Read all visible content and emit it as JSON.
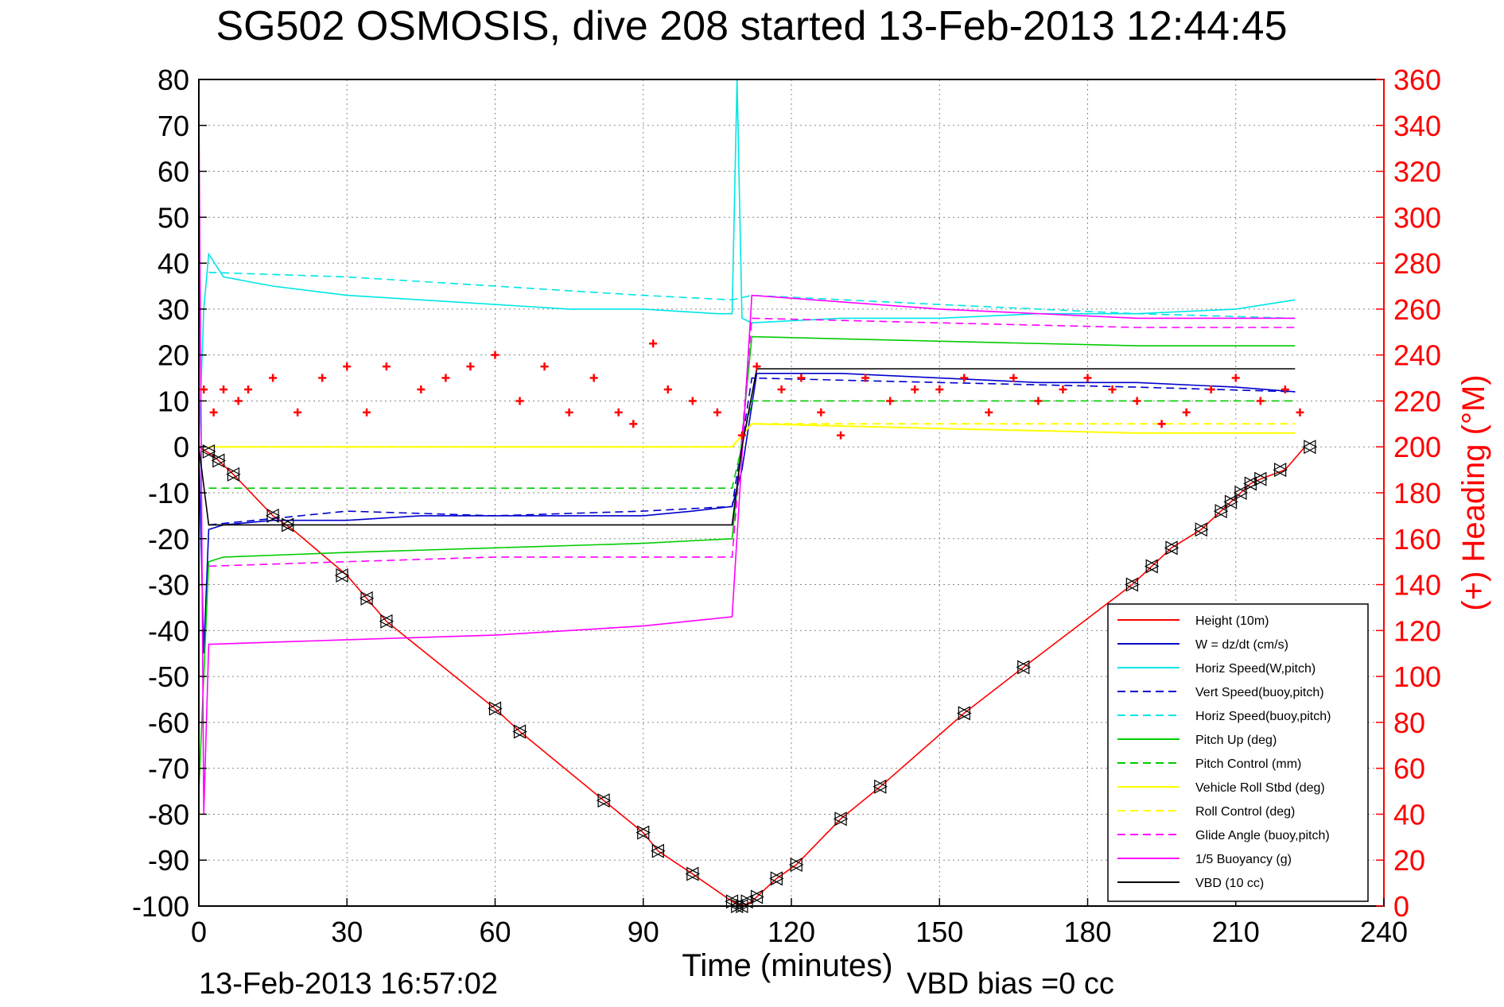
{
  "chart_data": {
    "type": "line",
    "title": "SG502 OSMOSIS, dive 208 started 13-Feb-2013 12:44:45",
    "xlabel": "Time (minutes)",
    "ylabel": "",
    "y2label": "(+) Heading (°M)",
    "footer_left": "13-Feb-2013 16:57:02",
    "footer_right": "VBD bias =0 cc",
    "xlim": [
      0,
      240
    ],
    "ylim": [
      -100,
      80
    ],
    "y2lim": [
      0,
      360
    ],
    "xticks": [
      "0",
      "30",
      "60",
      "90",
      "120",
      "150",
      "180",
      "210",
      "240"
    ],
    "yticks": [
      "80",
      "70",
      "60",
      "50",
      "40",
      "30",
      "20",
      "10",
      "0",
      "-10",
      "-20",
      "-30",
      "-40",
      "-50",
      "-60",
      "-70",
      "-80",
      "-90",
      "-100"
    ],
    "y2ticks": [
      "360",
      "340",
      "320",
      "300",
      "280",
      "260",
      "240",
      "220",
      "200",
      "180",
      "160",
      "140",
      "120",
      "100",
      "80",
      "60",
      "40",
      "20",
      "0"
    ],
    "grid": true,
    "legend_position": "bottom-right",
    "colors": {
      "height": "#ff0000",
      "w": "#0000cc",
      "horiz": "#00e5e5",
      "pitch": "#00cc00",
      "roll": "#ffff00",
      "glide": "#ff00ff",
      "vbd": "#000000",
      "heading": "#ff0000",
      "markers": "#000000"
    },
    "series": [
      {
        "name": "Height (10m)",
        "style": "solid",
        "color": "#ff0000",
        "x": [
          0,
          3,
          7,
          15,
          19,
          30,
          34,
          38,
          60,
          65,
          82,
          90,
          93,
          100,
          108,
          110,
          112,
          117,
          121,
          130,
          138,
          155,
          167,
          189,
          193,
          197,
          203,
          207,
          210,
          213,
          215,
          220,
          224
        ],
        "y": [
          0,
          -2,
          -6,
          -15,
          -18,
          -28,
          -33,
          -38,
          -57,
          -62,
          -77,
          -84,
          -88,
          -93,
          -99,
          -100,
          -99,
          -94,
          -91,
          -81,
          -74,
          -58,
          -48,
          -30,
          -26,
          -22,
          -18,
          -14,
          -11,
          -8,
          -7,
          -5,
          0
        ]
      },
      {
        "name": "W = dz/dt (cm/s)",
        "style": "solid",
        "color": "#0000cc",
        "x": [
          0,
          1,
          2,
          5,
          15,
          30,
          45,
          60,
          75,
          90,
          100,
          108,
          110,
          113,
          130,
          150,
          170,
          190,
          210,
          222
        ],
        "y": [
          0,
          -45,
          -18,
          -17,
          -16,
          -16,
          -15,
          -15,
          -15,
          -15,
          -14,
          -13,
          -5,
          16,
          16,
          15,
          14,
          14,
          13,
          12
        ]
      },
      {
        "name": "Horiz Speed(W,pitch)",
        "style": "solid",
        "color": "#00e5e5",
        "x": [
          0,
          1,
          2,
          5,
          15,
          30,
          45,
          60,
          75,
          90,
          105,
          108,
          109,
          110,
          112,
          130,
          150,
          170,
          190,
          210,
          222
        ],
        "y": [
          0,
          30,
          42,
          37,
          35,
          33,
          32,
          31,
          30,
          30,
          29,
          29,
          80,
          28,
          27,
          28,
          28,
          29,
          29,
          30,
          32
        ]
      },
      {
        "name": "Vert Speed(buoy,pitch)",
        "style": "dashed",
        "color": "#0000cc",
        "x": [
          2,
          30,
          60,
          90,
          108,
          112,
          150,
          190,
          222
        ],
        "y": [
          -17,
          -14,
          -15,
          -14,
          -13,
          15,
          14,
          13,
          12
        ]
      },
      {
        "name": "Horiz Speed(buoy,pitch)",
        "style": "dashed",
        "color": "#00e5e5",
        "x": [
          2,
          30,
          60,
          90,
          108,
          112,
          150,
          190,
          222
        ],
        "y": [
          38,
          37,
          35,
          33,
          32,
          33,
          31,
          29,
          28
        ]
      },
      {
        "name": "Pitch Up (deg)",
        "style": "solid",
        "color": "#00cc00",
        "x": [
          0,
          2,
          5,
          30,
          60,
          90,
          108,
          112,
          150,
          190,
          222
        ],
        "y": [
          -75,
          -25,
          -24,
          -23,
          -22,
          -21,
          -20,
          24,
          23,
          22,
          22
        ]
      },
      {
        "name": "Pitch Control (mm)",
        "style": "dashed",
        "color": "#00cc00",
        "x": [
          2,
          30,
          60,
          90,
          108,
          112,
          150,
          190,
          222
        ],
        "y": [
          -9,
          -9,
          -9,
          -9,
          -9,
          10,
          10,
          10,
          10
        ]
      },
      {
        "name": "Vehicle Roll Stbd (deg)",
        "style": "solid",
        "color": "#ffff00",
        "x": [
          2,
          30,
          60,
          90,
          108,
          112,
          150,
          190,
          222
        ],
        "y": [
          0,
          0,
          0,
          0,
          0,
          5,
          4,
          3,
          3
        ]
      },
      {
        "name": "Roll Control (deg)",
        "style": "dashed",
        "color": "#ffff00",
        "x": [
          2,
          30,
          60,
          90,
          108,
          112,
          150,
          190,
          222
        ],
        "y": [
          0,
          0,
          0,
          0,
          0,
          5,
          5,
          5,
          5
        ]
      },
      {
        "name": "Glide Angle (buoy,pitch)",
        "style": "dashed",
        "color": "#ff00ff",
        "x": [
          2,
          30,
          60,
          90,
          108,
          112,
          150,
          190,
          222
        ],
        "y": [
          -26,
          -25,
          -24,
          -24,
          -24,
          28,
          27,
          26,
          26
        ]
      },
      {
        "name": "1/5 Buoyancy (g)",
        "style": "solid",
        "color": "#ff00ff",
        "x": [
          0,
          1,
          2,
          30,
          60,
          90,
          108,
          112,
          150,
          190,
          222
        ],
        "y": [
          75,
          -80,
          -43,
          -42,
          -41,
          -39,
          -37,
          33,
          30,
          28,
          28
        ]
      },
      {
        "name": "VBD (10 cc)",
        "style": "solid",
        "color": "#000000",
        "x": [
          0,
          2,
          108,
          110,
          113,
          222
        ],
        "y": [
          0,
          -17,
          -17,
          0,
          17,
          17
        ]
      },
      {
        "name": "Heading",
        "style": "plus",
        "color": "#ff0000",
        "axis": "right",
        "x": [
          1,
          3,
          5,
          8,
          10,
          15,
          20,
          25,
          30,
          34,
          38,
          45,
          50,
          55,
          60,
          65,
          70,
          75,
          80,
          85,
          88,
          92,
          95,
          100,
          105,
          110,
          113,
          118,
          122,
          126,
          130,
          135,
          140,
          145,
          150,
          155,
          160,
          165,
          170,
          175,
          180,
          185,
          190,
          195,
          200,
          205,
          210,
          215,
          220,
          223
        ],
        "y": [
          225,
          215,
          225,
          220,
          225,
          230,
          215,
          230,
          235,
          215,
          235,
          225,
          230,
          235,
          240,
          220,
          235,
          215,
          230,
          215,
          210,
          245,
          225,
          220,
          215,
          205,
          235,
          225,
          230,
          215,
          205,
          230,
          220,
          225,
          225,
          230,
          215,
          230,
          220,
          225,
          230,
          225,
          220,
          210,
          215,
          225,
          230,
          220,
          225,
          215
        ]
      },
      {
        "name": "Height markers",
        "style": "marker",
        "color": "#000000",
        "x": [
          2,
          4,
          7,
          15,
          18,
          29,
          34,
          38,
          60,
          65,
          82,
          90,
          93,
          100,
          108,
          109,
          110,
          111,
          113,
          117,
          121,
          130,
          138,
          155,
          167,
          189,
          193,
          197,
          203,
          207,
          209,
          211,
          213,
          215,
          219,
          225
        ],
        "y": [
          -1,
          -3,
          -6,
          -15,
          -17,
          -28,
          -33,
          -38,
          -57,
          -62,
          -77,
          -84,
          -88,
          -93,
          -99,
          -100,
          -100,
          -99,
          -98,
          -94,
          -91,
          -81,
          -74,
          -58,
          -48,
          -30,
          -26,
          -22,
          -18,
          -14,
          -12,
          -10,
          -8,
          -7,
          -5,
          0
        ]
      }
    ]
  }
}
